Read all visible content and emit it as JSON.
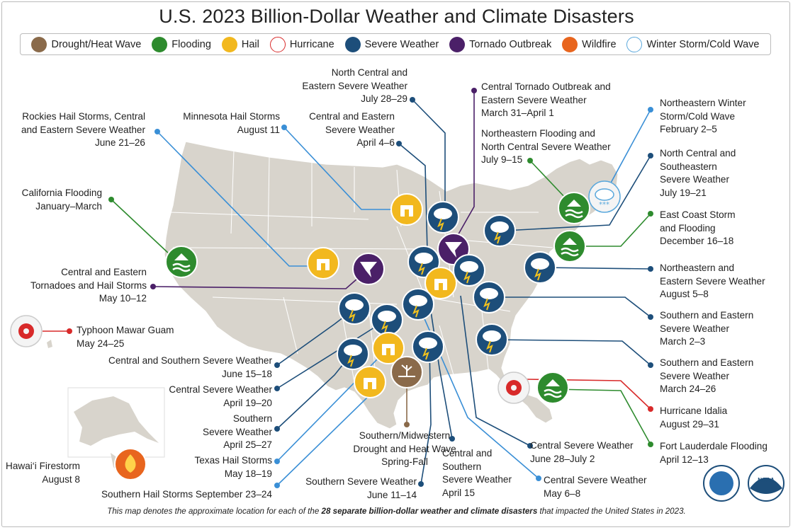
{
  "title": "U.S. 2023 Billion-Dollar Weather and Climate Disasters",
  "legend": [
    {
      "label": "Drought/Heat Wave",
      "icon": "drought-heat-wave-icon",
      "color": "#8a6a4a"
    },
    {
      "label": "Flooding",
      "icon": "flooding-icon",
      "color": "#2e8b2e"
    },
    {
      "label": "Hail",
      "icon": "hail-icon",
      "color": "#f2b81e"
    },
    {
      "label": "Hurricane",
      "icon": "hurricane-icon",
      "color": "#d82a2a"
    },
    {
      "label": "Severe Weather",
      "icon": "severe-weather-icon",
      "color": "#1d4e7a"
    },
    {
      "label": "Tornado Outbreak",
      "icon": "tornado-outbreak-icon",
      "color": "#4b2068"
    },
    {
      "label": "Wildfire",
      "icon": "wildfire-icon",
      "color": "#e8651e"
    },
    {
      "label": "Winter Storm/Cold Wave",
      "icon": "winter-storm-icon",
      "color": "#5aa8dc"
    }
  ],
  "events": {
    "ne_central_eastern_severe": {
      "lines": [
        "North Central and",
        "Eastern Severe Weather",
        "July 28–29"
      ]
    },
    "central_tornado_outbreak": {
      "lines": [
        "Central Tornado Outbreak and",
        "Eastern Severe Weather",
        "March 31–April 1"
      ]
    },
    "rockies_hail": {
      "lines": [
        "Rockies Hail Storms, Central",
        "and Eastern Severe Weather",
        "June 21–26"
      ]
    },
    "minnesota_hail": {
      "lines": [
        "Minnesota Hail Storms",
        "August 11"
      ]
    },
    "central_eastern_severe": {
      "lines": [
        "Central and Eastern",
        "Severe Weather",
        "April 4–6"
      ]
    },
    "ne_flooding": {
      "lines": [
        "Northeastern Flooding and",
        "North Central Severe Weather",
        "July 9–15"
      ]
    },
    "ne_winter": {
      "lines": [
        "Northeastern Winter",
        "Storm/Cold Wave",
        "February 2–5"
      ]
    },
    "nc_se_severe": {
      "lines": [
        "North Central and",
        "Southeastern",
        "Severe Weather",
        "July 19–21"
      ]
    },
    "ca_flooding": {
      "lines": [
        "California Flooding",
        "January–March"
      ]
    },
    "east_coast_storm": {
      "lines": [
        "East Coast Storm",
        "and Flooding",
        "December 16–18"
      ]
    },
    "central_eastern_tornadoes": {
      "lines": [
        "Central and Eastern",
        "Tornadoes and Hail Storms",
        "May 10–12"
      ]
    },
    "ne_eastern_severe_aug": {
      "lines": [
        "Northeastern and",
        "Eastern Severe Weather",
        "August 5–8"
      ]
    },
    "south_eastern_mar2": {
      "lines": [
        "Southern and Eastern",
        "Severe Weather",
        "March 2–3"
      ]
    },
    "typhoon_mawar": {
      "lines": [
        "Typhoon Mawar Guam",
        "May 24–25"
      ]
    },
    "south_eastern_mar24": {
      "lines": [
        "Southern and Eastern",
        "Severe Weather",
        "March 24–26"
      ]
    },
    "central_southern_jun15": {
      "lines": [
        "Central and Southern Severe Weather",
        "June 15–18"
      ]
    },
    "central_severe_apr19": {
      "lines": [
        "Central Severe Weather",
        "April 19–20"
      ]
    },
    "hurricane_idalia": {
      "lines": [
        "Hurricane Idalia",
        "August 29–31"
      ]
    },
    "southern_severe_apr25": {
      "lines": [
        "Southern",
        "Severe Weather",
        "April 25–27"
      ]
    },
    "southern_midwestern_drought": {
      "lines": [
        "Southern/Midwestern",
        "Drought and Heat Wave",
        "Spring-Fall"
      ]
    },
    "fort_lauderdale": {
      "lines": [
        "Fort Lauderdale Flooding",
        "April 12–13"
      ]
    },
    "central_severe_jun28": {
      "lines": [
        "Central Severe Weather",
        "June 28–July 2"
      ]
    },
    "texas_hail": {
      "lines": [
        "Texas Hail Storms",
        "May 18–19"
      ]
    },
    "central_southern_apr15": {
      "lines": [
        "Central and",
        "Southern",
        "Severe Weather",
        "April 15"
      ]
    },
    "hawaii_firestorm": {
      "lines": [
        "Hawai‘i Firestorm",
        "August 8"
      ]
    },
    "central_severe_may6": {
      "lines": [
        "Central Severe Weather",
        "May 6–8"
      ]
    },
    "southern_severe_jun11": {
      "lines": [
        "Southern Severe Weather",
        "June 11–14"
      ]
    },
    "southern_hail_sep": {
      "lines": [
        "Southern Hail Storms September 23–24"
      ]
    }
  },
  "footnote": {
    "before": "This map denotes the approximate location for each of the ",
    "bold": "28 separate billion-dollar weather and climate disasters",
    "after": " that impacted the United States in 2023."
  },
  "logos": {
    "commerce": "department-of-commerce-seal",
    "noaa": "NOAA"
  }
}
